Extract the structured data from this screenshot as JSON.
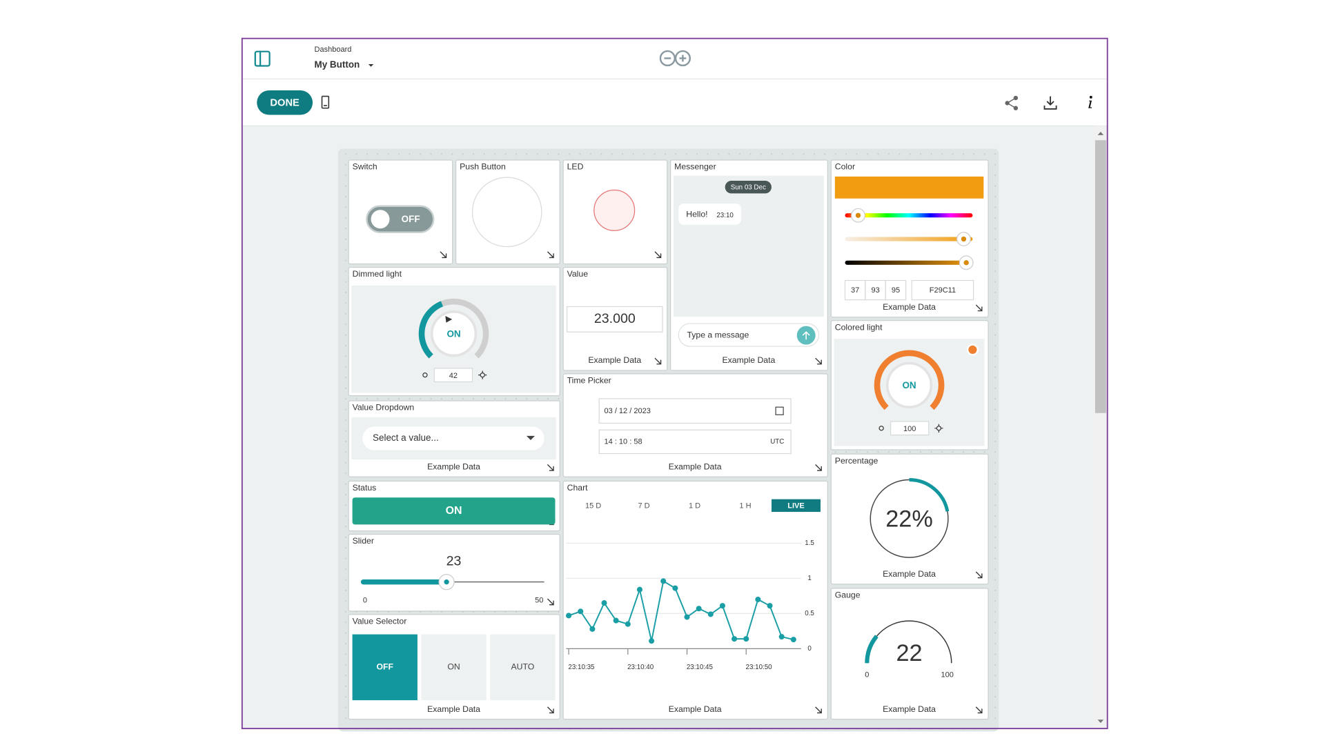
{
  "header": {
    "breadcrumb": "Dashboard",
    "title": "My Button"
  },
  "toolbar": {
    "done": "DONE"
  },
  "widgets": {
    "switch": {
      "title": "Switch",
      "state": "OFF"
    },
    "push_button": {
      "title": "Push Button"
    },
    "led": {
      "title": "LED"
    },
    "messenger": {
      "title": "Messenger",
      "date": "Sun 03 Dec",
      "message": "Hello!",
      "time": "23:10",
      "placeholder": "Type a message",
      "footer": "Example Data"
    },
    "color": {
      "title": "Color",
      "hue": 37,
      "saturation": 93,
      "brightness": 95,
      "hex": "F29C11",
      "footer": "Example Data"
    },
    "dimmed_light": {
      "title": "Dimmed light",
      "state": "ON",
      "value": 42
    },
    "value": {
      "title": "Value",
      "value": "23.000",
      "footer": "Example Data"
    },
    "colored_light": {
      "title": "Colored light",
      "state": "ON",
      "value": 100
    },
    "value_dropdown": {
      "title": "Value Dropdown",
      "placeholder": "Select a value...",
      "footer": "Example Data"
    },
    "time_picker": {
      "title": "Time Picker",
      "date": "03 / 12 / 2023",
      "time": "14 : 10 : 58",
      "timezone": "UTC",
      "footer": "Example Data"
    },
    "percentage": {
      "title": "Percentage",
      "value": 22,
      "value_label": "22%",
      "footer": "Example Data"
    },
    "status": {
      "title": "Status",
      "state": "ON"
    },
    "chart": {
      "title": "Chart",
      "type": "line",
      "ranges": [
        "15 D",
        "7 D",
        "1 D",
        "1 H",
        "LIVE"
      ],
      "active_range": 4,
      "x": [
        "23:10:35",
        "23:10:36",
        "23:10:37",
        "23:10:38",
        "23:10:39",
        "23:10:40",
        "23:10:41",
        "23:10:42",
        "23:10:43",
        "23:10:44",
        "23:10:45",
        "23:10:46",
        "23:10:47",
        "23:10:48",
        "23:10:49",
        "23:10:50",
        "23:10:51",
        "23:10:52",
        "23:10:53",
        "23:10:54"
      ],
      "values": [
        0.47,
        0.53,
        0.28,
        0.65,
        0.4,
        0.35,
        0.84,
        0.11,
        0.96,
        0.86,
        0.45,
        0.57,
        0.49,
        0.61,
        0.14,
        0.14,
        0.7,
        0.61,
        0.17,
        0.13
      ],
      "xlim": [
        "23:10:35",
        "23:10:54"
      ],
      "xticks": [
        "23:10:35",
        "23:10:40",
        "23:10:45",
        "23:10:50"
      ],
      "ylim": [
        0,
        1.5
      ],
      "yticks": [
        0,
        0.5,
        1,
        1.5
      ],
      "color": "#1a9ea5",
      "footer": "Example Data"
    },
    "slider": {
      "title": "Slider",
      "value": 23,
      "min": 0,
      "max": 50
    },
    "gauge": {
      "title": "Gauge",
      "value": 22,
      "min": 0,
      "max": 100,
      "footer": "Example Data"
    },
    "value_selector": {
      "title": "Value Selector",
      "options": [
        "OFF",
        "ON",
        "AUTO"
      ],
      "selected": 0,
      "footer": "Example Data"
    }
  }
}
